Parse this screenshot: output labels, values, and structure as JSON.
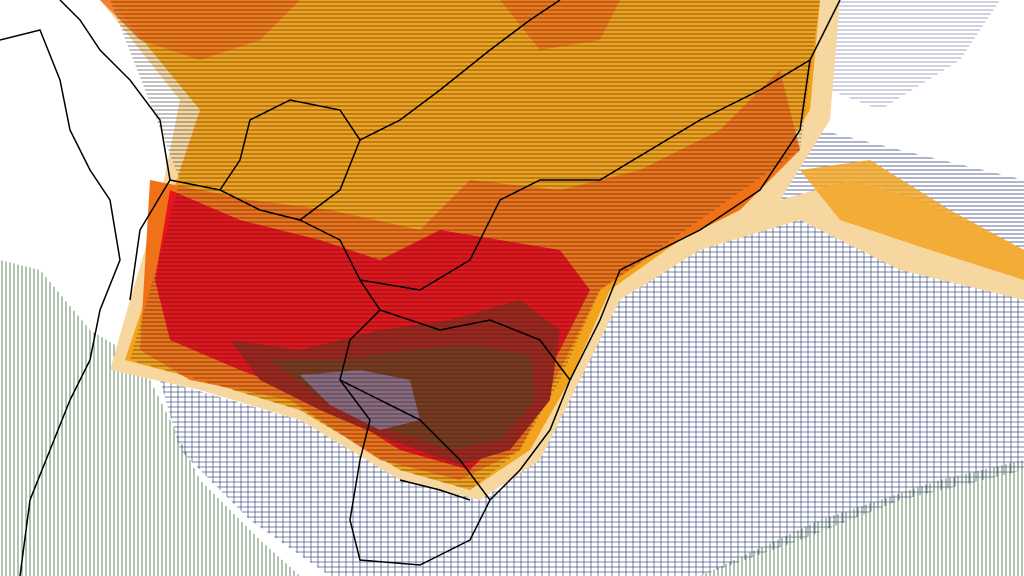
{
  "map": {
    "colors": {
      "background": "#ffffff",
      "light_orange": "#f6d7a0",
      "orange": "#f3a21c",
      "dark_orange": "#f07218",
      "red_orange": "#e8401c",
      "red": "#e8141c",
      "dark_red": "#a0261c",
      "brown": "#7a3a1e",
      "purple": "#8a6a80",
      "horizontal_hatch": "#222222",
      "grid_hatch": "#1a2a6a",
      "vertical_hatch": "#3a6a3a",
      "contour_blue": "#3030c0",
      "border": "#000000"
    }
  }
}
